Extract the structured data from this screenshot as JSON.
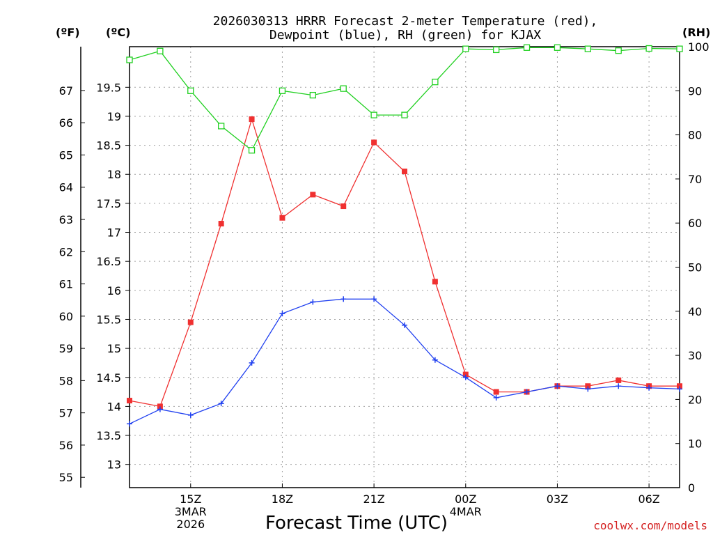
{
  "chart_data": {
    "type": "line",
    "title_line1": "2026030313 HRRR Forecast 2-meter Temperature (red),",
    "title_line2": "Dewpoint (blue), RH (green) for KJAX",
    "xlabel": "Forecast Time (UTC)",
    "credit": "coolwx.com/models",
    "units": {
      "fahrenheit": "(ºF)",
      "celsius": "(ºC)",
      "rh": "(RH)"
    },
    "x_hours": [
      0,
      1,
      2,
      3,
      4,
      5,
      6,
      7,
      8,
      9,
      10,
      11,
      12,
      13,
      14,
      15,
      16,
      17,
      18
    ],
    "x_ticks": [
      {
        "hour": 2,
        "lines": [
          "15Z",
          "3MAR",
          "2026"
        ]
      },
      {
        "hour": 5,
        "lines": [
          "18Z"
        ]
      },
      {
        "hour": 8,
        "lines": [
          "21Z"
        ]
      },
      {
        "hour": 11,
        "lines": [
          "00Z",
          "4MAR"
        ]
      },
      {
        "hour": 14,
        "lines": [
          "03Z"
        ]
      },
      {
        "hour": 17,
        "lines": [
          "06Z"
        ]
      }
    ],
    "xlim": [
      0,
      18
    ],
    "celsius_axis": {
      "range": [
        12.6,
        20.2
      ],
      "ticks": [
        "13",
        "13.5",
        "14",
        "14.5",
        "15",
        "15.5",
        "16",
        "16.5",
        "17",
        "17.5",
        "18",
        "18.5",
        "19",
        "19.5"
      ]
    },
    "fahrenheit_axis": {
      "ticks": [
        "55",
        "56",
        "57",
        "58",
        "59",
        "60",
        "61",
        "62",
        "63",
        "64",
        "65",
        "66",
        "67"
      ]
    },
    "rh_axis": {
      "range": [
        0,
        100
      ],
      "ticks": [
        "0",
        "10",
        "20",
        "30",
        "40",
        "50",
        "60",
        "70",
        "80",
        "90",
        "100"
      ]
    },
    "series": [
      {
        "name": "2-meter Temperature",
        "color": "#f03030",
        "marker": "filled-square",
        "axis": "celsius",
        "values": [
          14.1,
          14.0,
          15.45,
          17.15,
          18.95,
          17.25,
          17.65,
          17.45,
          18.55,
          18.05,
          16.15,
          14.55,
          14.25,
          14.25,
          14.35,
          14.35,
          14.45,
          14.35,
          14.35
        ]
      },
      {
        "name": "Dewpoint",
        "color": "#2040f0",
        "marker": "plus",
        "axis": "celsius",
        "values": [
          13.7,
          13.95,
          13.85,
          14.05,
          14.75,
          15.6,
          15.8,
          15.85,
          15.85,
          15.4,
          14.8,
          14.5,
          14.15,
          14.25,
          14.35,
          14.3,
          14.35,
          14.32,
          14.3
        ]
      },
      {
        "name": "RH",
        "color": "#20d020",
        "marker": "open-square",
        "axis": "rh",
        "values": [
          97,
          99,
          90,
          82,
          76.5,
          90,
          89,
          90.5,
          84.5,
          84.5,
          92,
          99.5,
          99.3,
          99.8,
          99.8,
          99.5,
          99.1,
          99.6,
          99.5
        ]
      }
    ]
  }
}
